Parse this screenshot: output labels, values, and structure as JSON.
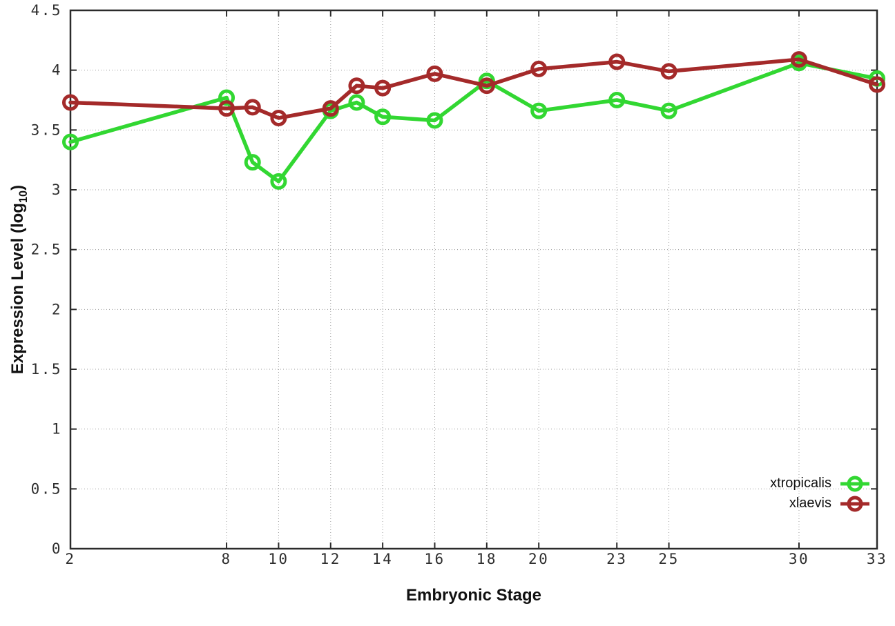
{
  "chart_data": {
    "type": "line",
    "title": "",
    "xlabel": "Embryonic Stage",
    "ylabel_prefix": "Expression Level (log",
    "ylabel_sub": "10",
    "ylabel_suffix": ")",
    "xlim": [
      2,
      33
    ],
    "ylim": [
      0,
      4.5
    ],
    "grid": true,
    "legend_position": "bottom-right",
    "x": [
      2,
      8,
      9,
      10,
      12,
      13,
      14,
      16,
      18,
      20,
      23,
      25,
      30,
      33
    ],
    "xticks": [
      2,
      8,
      10,
      12,
      14,
      16,
      18,
      20,
      23,
      25,
      30,
      33
    ],
    "xtick_labels": [
      "2",
      "8",
      "10",
      "12",
      "14",
      "16",
      "18",
      "20",
      "23",
      "25",
      "30",
      "33"
    ],
    "yticks": [
      0,
      0.5,
      1,
      1.5,
      2,
      2.5,
      3,
      3.5,
      4,
      4.5
    ],
    "ytick_labels": [
      "0",
      "0.5",
      "1",
      "1.5",
      "2",
      "2.5",
      "3",
      "3.5",
      "4",
      "4.5"
    ],
    "series": [
      {
        "name": "xtropicalis",
        "color": "#32d732",
        "values": [
          3.4,
          3.77,
          3.23,
          3.07,
          3.66,
          3.73,
          3.61,
          3.58,
          3.91,
          3.66,
          3.75,
          3.66,
          4.06,
          3.93
        ]
      },
      {
        "name": "xlaevis",
        "color": "#a42a2a",
        "values": [
          3.73,
          3.68,
          3.69,
          3.6,
          3.68,
          3.87,
          3.85,
          3.97,
          3.87,
          4.01,
          4.07,
          3.99,
          4.09,
          3.88
        ]
      }
    ]
  }
}
